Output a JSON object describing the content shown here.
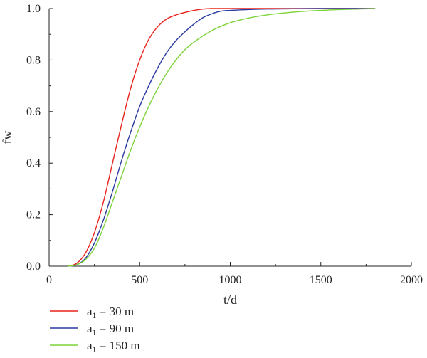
{
  "chart_data": {
    "type": "line",
    "xlabel": "t/d",
    "ylabel": "fw",
    "xlim": [
      0,
      2000
    ],
    "ylim": [
      0,
      1.0
    ],
    "xticks": [
      0,
      500,
      1000,
      1500,
      2000
    ],
    "yticks": [
      0.0,
      0.2,
      0.4,
      0.6,
      0.8,
      1.0
    ],
    "ytick_labels": [
      "0.0",
      "0.2",
      "0.4",
      "0.6",
      "0.8",
      "1.0"
    ],
    "grid": false,
    "legend_position": "bottom-left, below plot",
    "series": [
      {
        "name": "a1 = 30 m",
        "legend_main": "a",
        "legend_sub": "1",
        "legend_rest": " = 30 m",
        "color": "#e8221c",
        "x": [
          100,
          150,
          200,
          250,
          300,
          350,
          400,
          450,
          500,
          550,
          600,
          650,
          700,
          750,
          800,
          850,
          900,
          1000,
          1200,
          1500,
          1800
        ],
        "y": [
          0.0,
          0.01,
          0.05,
          0.13,
          0.25,
          0.4,
          0.55,
          0.69,
          0.8,
          0.88,
          0.93,
          0.96,
          0.975,
          0.985,
          0.993,
          0.998,
          1.0,
          1.0,
          1.0,
          1.0,
          1.0
        ]
      },
      {
        "name": "a1 = 90 m",
        "legend_main": "a",
        "legend_sub": "1",
        "legend_rest": " = 90 m",
        "color": "#2b3aa0",
        "x": [
          100,
          150,
          200,
          250,
          300,
          350,
          400,
          450,
          500,
          550,
          600,
          650,
          700,
          750,
          800,
          850,
          900,
          950,
          1000,
          1100,
          1200,
          1500,
          1800
        ],
        "y": [
          0.0,
          0.005,
          0.03,
          0.09,
          0.18,
          0.29,
          0.41,
          0.52,
          0.62,
          0.7,
          0.77,
          0.83,
          0.875,
          0.91,
          0.94,
          0.965,
          0.98,
          0.99,
          0.993,
          0.996,
          0.998,
          1.0,
          1.0
        ]
      },
      {
        "name": "a1 = 150 m",
        "legend_main": "a",
        "legend_sub": "1",
        "legend_rest": " = 150 m",
        "color": "#7dd33a",
        "x": [
          100,
          150,
          200,
          250,
          300,
          350,
          400,
          450,
          500,
          550,
          600,
          650,
          700,
          750,
          800,
          900,
          1000,
          1100,
          1200,
          1300,
          1400,
          1500,
          1600,
          1800
        ],
        "y": [
          0.0,
          0.005,
          0.025,
          0.07,
          0.15,
          0.25,
          0.35,
          0.45,
          0.54,
          0.62,
          0.69,
          0.75,
          0.8,
          0.84,
          0.87,
          0.915,
          0.945,
          0.963,
          0.975,
          0.983,
          0.989,
          0.993,
          0.996,
          1.0
        ]
      }
    ]
  }
}
